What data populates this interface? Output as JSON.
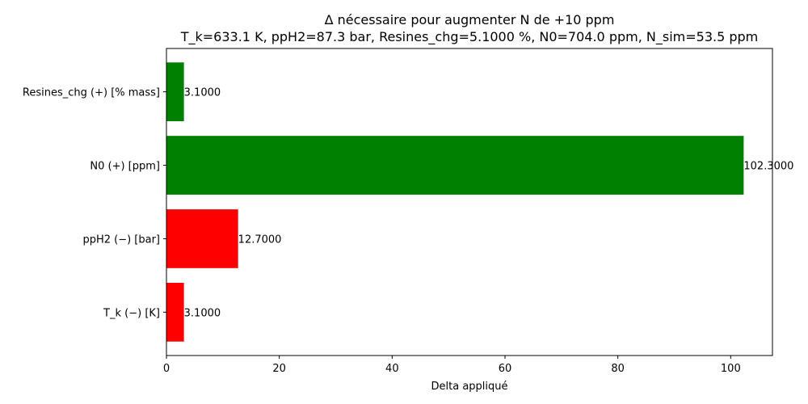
{
  "chart_data": {
    "type": "bar",
    "orientation": "horizontal",
    "title": "Δ nécessaire pour augmenter N de +10 ppm",
    "subtitle": "T_k=633.1 K, ppH2=87.3 bar, Resines_chg=5.1000 %, N0=704.0 ppm, N_sim=53.5 ppm",
    "xlabel": "Delta appliqué",
    "ylabel": "",
    "xlim": [
      0,
      107.4
    ],
    "xticks": [
      0,
      20,
      40,
      60,
      80,
      100
    ],
    "xtick_labels": [
      "0",
      "20",
      "40",
      "60",
      "80",
      "100"
    ],
    "categories": [
      "T_k (−) [K]",
      "ppH2 (−) [bar]",
      "N0 (+) [ppm]",
      "Resines_chg (+) [% mass]"
    ],
    "values": [
      3.1,
      12.7,
      102.3,
      3.1
    ],
    "value_labels": [
      "3.1000",
      "12.7000",
      "102.3000",
      "3.1000"
    ],
    "colors": [
      "#ff0000",
      "#ff0000",
      "#008000",
      "#008000"
    ],
    "grid": false,
    "legend": "none"
  }
}
